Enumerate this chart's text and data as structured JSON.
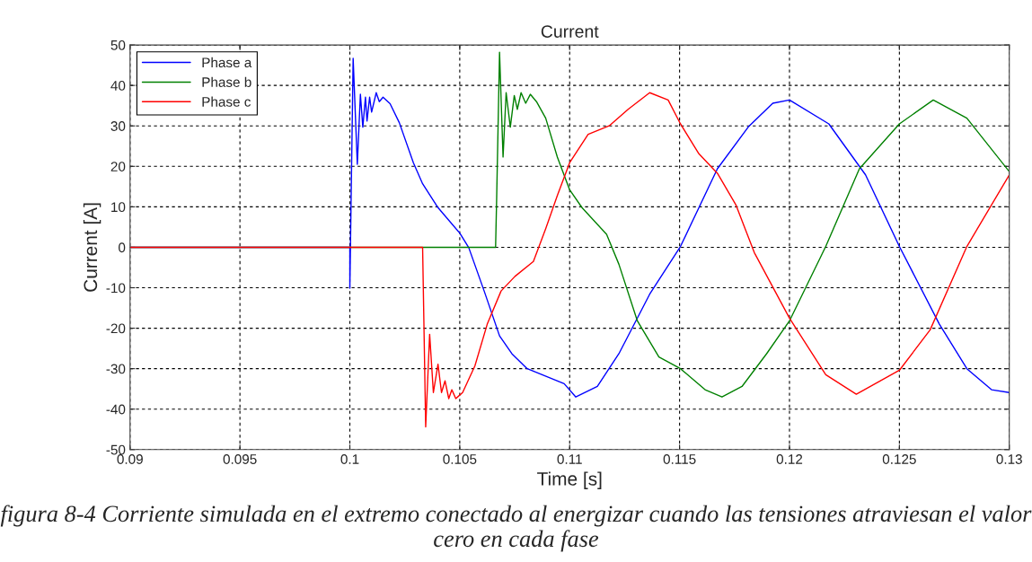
{
  "chart_data": {
    "type": "line",
    "title": "Current",
    "xlabel": "Time [s]",
    "ylabel": "Current [A]",
    "xlim": [
      0.09,
      0.13
    ],
    "xticks": [
      0.09,
      0.095,
      0.1,
      0.105,
      0.11,
      0.115,
      0.12,
      0.125,
      0.13
    ],
    "ylim": [
      -50,
      50
    ],
    "yticks": [
      -50,
      -40,
      -30,
      -20,
      -10,
      0,
      10,
      20,
      30,
      40,
      50
    ],
    "grid": true,
    "legend": "top left",
    "marker": "none",
    "line_style": "solid",
    "annotations": [
      "figura 8-4 Corriente simulada en el extremo conectado al energizar cuando las tensiones atraviesan el valor cero en cada fase"
    ],
    "series": [
      {
        "name": "Phase a",
        "color": "#0000ff",
        "x": [
          0.09,
          0.1,
          0.1,
          0.10015,
          0.10034,
          0.10048,
          0.10059,
          0.10071,
          0.10078,
          0.1009,
          0.10099,
          0.1012,
          0.10134,
          0.10151,
          0.10183,
          0.10225,
          0.10289,
          0.10331,
          0.10401,
          0.105,
          0.10541,
          0.10611,
          0.10681,
          0.10737,
          0.10807,
          0.10975,
          0.11028,
          0.11126,
          0.11224,
          0.11364,
          0.11504,
          0.11672,
          0.11812,
          0.11924,
          0.12,
          0.12179,
          0.12346,
          0.125,
          0.12682,
          0.12807,
          0.12919,
          0.13
        ],
        "values": [
          0,
          0,
          -10.1,
          46.7,
          20.5,
          37.8,
          29.7,
          37.1,
          31.2,
          37.1,
          33.4,
          38.2,
          36.0,
          37.1,
          35.5,
          30.8,
          20.9,
          15.7,
          9.8,
          3.5,
          -0.1,
          -10.8,
          -21.9,
          -26.3,
          -30.0,
          -33.7,
          -37.0,
          -34.4,
          -26.3,
          -11.6,
          0.2,
          19.4,
          29.7,
          35.6,
          36.4,
          30.5,
          17.9,
          0.2,
          -19.0,
          -30.0,
          -35.2,
          -35.9
        ]
      },
      {
        "name": "Phase b",
        "color": "#008000",
        "x": [
          0.09,
          0.10663,
          0.10668,
          0.10681,
          0.10697,
          0.10711,
          0.1073,
          0.10748,
          0.10762,
          0.10779,
          0.108,
          0.10821,
          0.10849,
          0.10891,
          0.10944,
          0.11,
          0.11056,
          0.11168,
          0.11224,
          0.11308,
          0.11406,
          0.11504,
          0.11616,
          0.11693,
          0.11784,
          0.11896,
          0.12,
          0.12165,
          0.12318,
          0.125,
          0.12654,
          0.12807,
          0.13
        ],
        "values": [
          0,
          0,
          12.4,
          48.2,
          22.3,
          38.2,
          29.7,
          37.5,
          34.1,
          38.2,
          35.6,
          37.8,
          36.0,
          31.9,
          22.3,
          14.2,
          9.8,
          3.2,
          -4.2,
          -18.2,
          -27.1,
          -30.0,
          -35.2,
          -37.0,
          -34.4,
          -26.3,
          -18.2,
          0.2,
          19.4,
          30.5,
          36.4,
          31.9,
          18.7
        ]
      },
      {
        "name": "Phase c",
        "color": "#ff0000",
        "x": [
          0.09,
          0.10331,
          0.10345,
          0.10363,
          0.1038,
          0.10401,
          0.10417,
          0.10433,
          0.1045,
          0.10464,
          0.10482,
          0.10513,
          0.10569,
          0.10625,
          0.10688,
          0.10751,
          0.10835,
          0.10891,
          0.10944,
          0.11,
          0.11084,
          0.11182,
          0.11266,
          0.11364,
          0.11448,
          0.11504,
          0.11588,
          0.11672,
          0.11756,
          0.1184,
          0.12,
          0.12165,
          0.12304,
          0.125,
          0.1264,
          0.12807,
          0.13
        ],
        "values": [
          0,
          0,
          -44.4,
          -21.5,
          -35.9,
          -28.9,
          -35.9,
          -33.0,
          -37.4,
          -35.2,
          -37.4,
          -35.9,
          -29.3,
          -19.0,
          -10.8,
          -7.2,
          -3.5,
          4.6,
          12.8,
          20.9,
          27.9,
          30.1,
          34.1,
          38.2,
          36.4,
          30.5,
          23.1,
          18.3,
          10.5,
          -1.3,
          -17.5,
          -31.5,
          -36.3,
          -30.4,
          -20.4,
          0.2,
          17.9
        ]
      }
    ]
  }
}
